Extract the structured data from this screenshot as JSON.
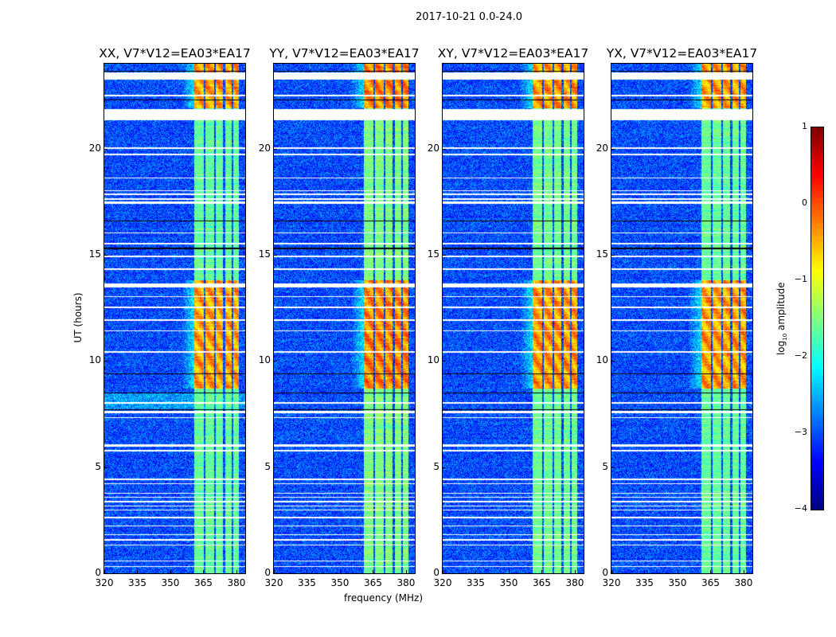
{
  "chart_data": {
    "type": "heatmap",
    "title": "2017-10-21 0.0-24.0",
    "xlabel": "frequency (MHz)",
    "ylabel": "UT (hours)",
    "xlim": [
      320,
      384
    ],
    "ylim": [
      0,
      24
    ],
    "xticks": [
      "320",
      "335",
      "350",
      "365",
      "380"
    ],
    "xtick_values": [
      320,
      335,
      350,
      365,
      380
    ],
    "yticks": [
      "0",
      "5",
      "10",
      "15",
      "20"
    ],
    "ytick_values": [
      0,
      5,
      10,
      15,
      20
    ],
    "panels": [
      {
        "title": "XX, V7*V12=EA03*EA17",
        "strength": 0.85
      },
      {
        "title": "YY, V7*V12=EA03*EA17",
        "strength": 1.0
      },
      {
        "title": "XY, V7*V12=EA03*EA17",
        "strength": 0.9
      },
      {
        "title": "YX, V7*V12=EA03*EA17",
        "strength": 0.85
      }
    ],
    "background_log_amplitude": -3.0,
    "signal_bands_mhz": [
      [
        361,
        365.2
      ],
      [
        366,
        369.8
      ],
      [
        370.6,
        373.8
      ],
      [
        374.8,
        377.8
      ],
      [
        378.4,
        381
      ]
    ],
    "high_amplitude_intervals_ut": [
      [
        8.7,
        13.8
      ],
      [
        21.9,
        24
      ]
    ],
    "high_amplitude_level": -0.3,
    "normal_band_level": -1.5,
    "flagged_rows_ut": [
      [
        23.25,
        23.6
      ],
      [
        22.45,
        22.55
      ],
      [
        21.35,
        21.85
      ],
      [
        20.0,
        20.05
      ],
      [
        19.7,
        19.75
      ],
      [
        18.6,
        18.65
      ],
      [
        18.0,
        18.05
      ],
      [
        17.8,
        17.9
      ],
      [
        17.6,
        17.65
      ],
      [
        17.4,
        17.5
      ],
      [
        16.0,
        16.05
      ],
      [
        15.5,
        15.55
      ],
      [
        14.9,
        14.95
      ],
      [
        14.3,
        14.35
      ],
      [
        13.45,
        13.65
      ],
      [
        13.0,
        13.05
      ],
      [
        12.5,
        12.55
      ],
      [
        11.9,
        11.95
      ],
      [
        11.4,
        11.45
      ],
      [
        10.4,
        10.45
      ],
      [
        8.0,
        8.05
      ],
      [
        7.55,
        7.65
      ],
      [
        7.3,
        7.35
      ],
      [
        5.95,
        6.08
      ],
      [
        5.75,
        5.8
      ],
      [
        4.4,
        4.45
      ],
      [
        4.2,
        4.25
      ],
      [
        3.75,
        3.8
      ],
      [
        3.55,
        3.6
      ],
      [
        3.35,
        3.4
      ],
      [
        3.15,
        3.2
      ],
      [
        2.95,
        3.0
      ],
      [
        2.6,
        2.65
      ],
      [
        2.2,
        2.25
      ],
      [
        1.8,
        1.85
      ],
      [
        1.55,
        1.6
      ],
      [
        1.3,
        1.35
      ],
      [
        0.55,
        0.6
      ],
      [
        0.3,
        0.35
      ]
    ],
    "black_lines_ut": [
      23.65,
      22.3,
      16.6,
      15.3,
      9.4,
      8.5,
      7.7
    ],
    "colorbar": {
      "label": "log10 amplitude",
      "label_main": "log",
      "label_sub": "10",
      "label_rest": " amplitude",
      "range": [
        -4,
        1
      ],
      "ticks": [
        "−4",
        "−3",
        "−2",
        "−1",
        "0",
        "1"
      ],
      "tick_values": [
        -4,
        -3,
        -2,
        -1,
        0,
        1
      ],
      "colormap": "jet"
    }
  }
}
